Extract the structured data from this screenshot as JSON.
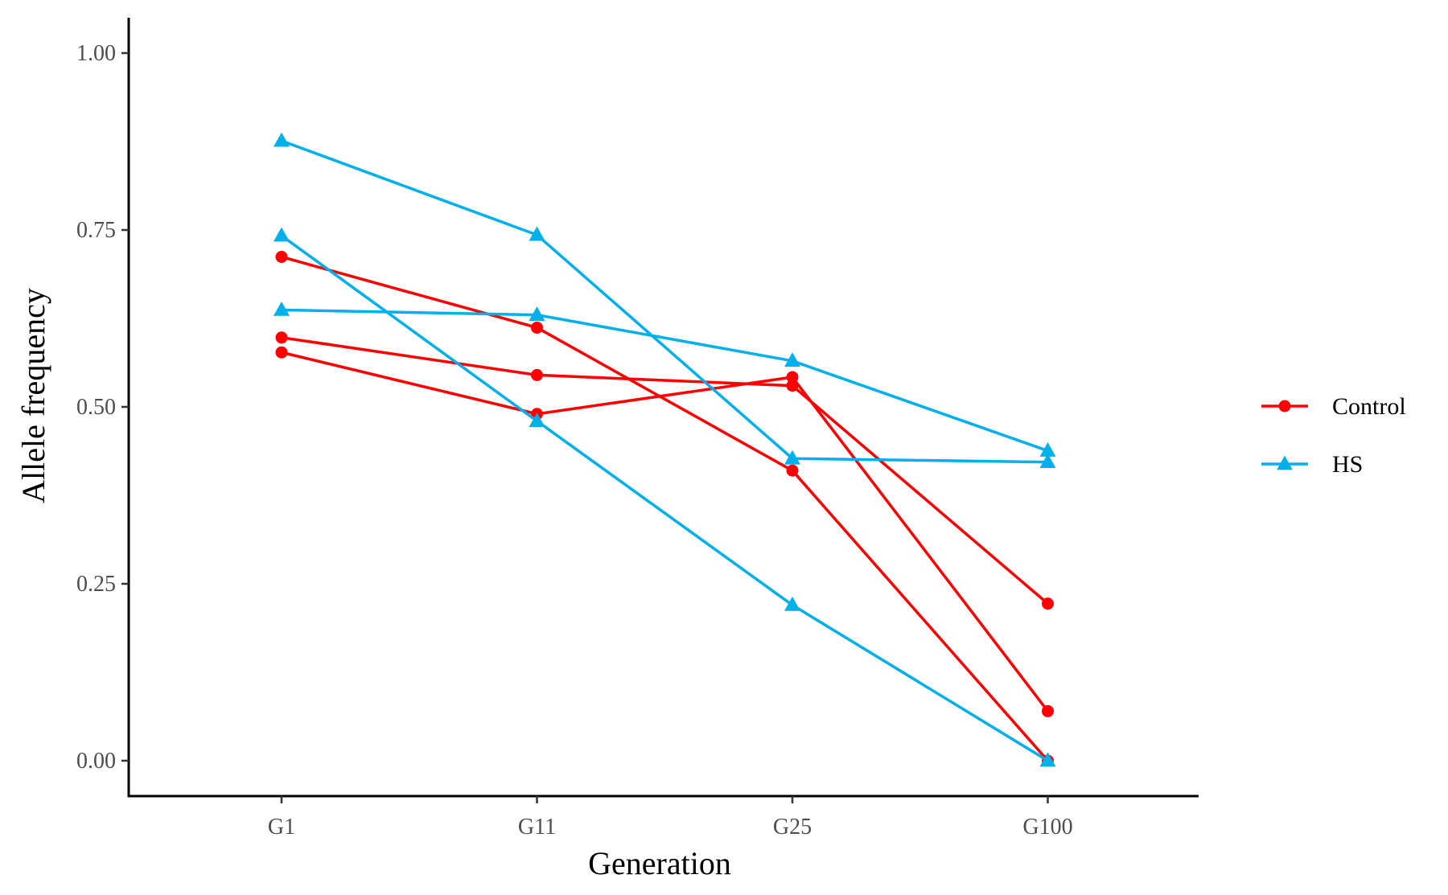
{
  "chart_data": {
    "type": "line",
    "xlabel": "Generation",
    "ylabel": "Allele frequency",
    "categories": [
      "G1",
      "G11",
      "G25",
      "G100"
    ],
    "ylim": [
      -0.05,
      1.05
    ],
    "yticks": [
      {
        "value": 0.0,
        "label": "0.00"
      },
      {
        "value": 0.25,
        "label": "0.25"
      },
      {
        "value": 0.5,
        "label": "0.50"
      },
      {
        "value": 0.75,
        "label": "0.75"
      },
      {
        "value": 1.0,
        "label": "1.00"
      }
    ],
    "grid": false,
    "legend_position": "right",
    "groups": [
      {
        "name": "Control",
        "color": "#ff0000",
        "marker": "circle"
      },
      {
        "name": "HS",
        "color": "#00b0eb",
        "marker": "triangle"
      }
    ],
    "series": [
      {
        "group": "Control",
        "values": [
          0.712,
          0.612,
          0.41,
          0.0
        ]
      },
      {
        "group": "Control",
        "values": [
          0.598,
          0.545,
          0.53,
          0.222
        ]
      },
      {
        "group": "Control",
        "values": [
          0.577,
          0.49,
          0.542,
          0.07
        ]
      },
      {
        "group": "HS",
        "values": [
          0.876,
          0.743,
          0.427,
          0.422
        ]
      },
      {
        "group": "HS",
        "values": [
          0.742,
          0.48,
          0.22,
          0.0
        ]
      },
      {
        "group": "HS",
        "values": [
          0.637,
          0.63,
          0.565,
          0.438
        ]
      }
    ]
  }
}
